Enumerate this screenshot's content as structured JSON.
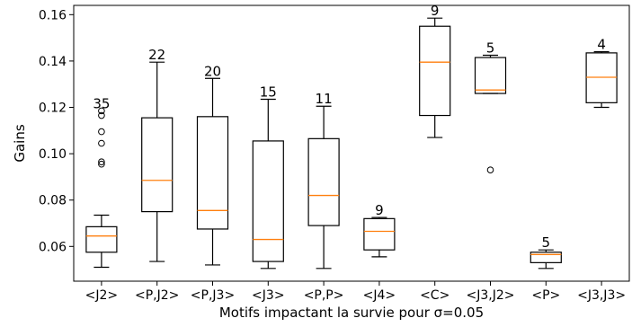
{
  "chart_data": {
    "type": "box",
    "xlabel": "Motifs impactant la survie pour σ=0.05",
    "ylabel": "Gains",
    "ylim": [
      0.045,
      0.164
    ],
    "yticks": [
      0.06,
      0.08,
      0.1,
      0.12,
      0.14,
      0.16
    ],
    "ytick_labels": [
      "0.06",
      "0.08",
      "0.10",
      "0.12",
      "0.14",
      "0.16"
    ],
    "grid": false,
    "legend": "none",
    "categories": [
      "<J2>",
      "<P,J2>",
      "<P,J3>",
      "<J3>",
      "<P,P>",
      "<J4>",
      "<C>",
      "<J3,J2>",
      "<P>",
      "<J3,J3>"
    ],
    "boxes": [
      {
        "label": "<J2>",
        "count": "35",
        "whisker_low": 0.051,
        "q1": 0.0575,
        "median": 0.0645,
        "q3": 0.0685,
        "whisker_high": 0.0735,
        "outliers": [
          0.0955,
          0.0965,
          0.1045,
          0.1095,
          0.1165,
          0.1185
        ]
      },
      {
        "label": "<P,J2>",
        "count": "22",
        "whisker_low": 0.0535,
        "q1": 0.075,
        "median": 0.0885,
        "q3": 0.1155,
        "whisker_high": 0.1395,
        "outliers": []
      },
      {
        "label": "<P,J3>",
        "count": "20",
        "whisker_low": 0.052,
        "q1": 0.0675,
        "median": 0.0755,
        "q3": 0.116,
        "whisker_high": 0.1325,
        "outliers": []
      },
      {
        "label": "<J3>",
        "count": "15",
        "whisker_low": 0.0505,
        "q1": 0.0535,
        "median": 0.063,
        "q3": 0.1055,
        "whisker_high": 0.1235,
        "outliers": []
      },
      {
        "label": "<P,P>",
        "count": "11",
        "whisker_low": 0.0505,
        "q1": 0.069,
        "median": 0.082,
        "q3": 0.1065,
        "whisker_high": 0.1205,
        "outliers": []
      },
      {
        "label": "<J4>",
        "count": "9",
        "whisker_low": 0.0555,
        "q1": 0.0585,
        "median": 0.0665,
        "q3": 0.072,
        "whisker_high": 0.0725,
        "outliers": []
      },
      {
        "label": "<C>",
        "count": "9",
        "whisker_low": 0.107,
        "q1": 0.1165,
        "median": 0.1395,
        "q3": 0.155,
        "whisker_high": 0.1585,
        "outliers": []
      },
      {
        "label": "<J3,J2>",
        "count": "5",
        "whisker_low": 0.126,
        "q1": 0.126,
        "median": 0.1275,
        "q3": 0.1415,
        "whisker_high": 0.1425,
        "outliers": [
          0.093
        ]
      },
      {
        "label": "<P>",
        "count": "5",
        "whisker_low": 0.0505,
        "q1": 0.053,
        "median": 0.0565,
        "q3": 0.0575,
        "whisker_high": 0.0585,
        "outliers": []
      },
      {
        "label": "<J3,J3>",
        "count": "4",
        "whisker_low": 0.12,
        "q1": 0.122,
        "median": 0.133,
        "q3": 0.1435,
        "whisker_high": 0.144,
        "outliers": []
      }
    ],
    "colors": {
      "box_stroke": "#000000",
      "median": "#ff7f0e",
      "outlier": "#000000",
      "axes": "#000000"
    }
  }
}
